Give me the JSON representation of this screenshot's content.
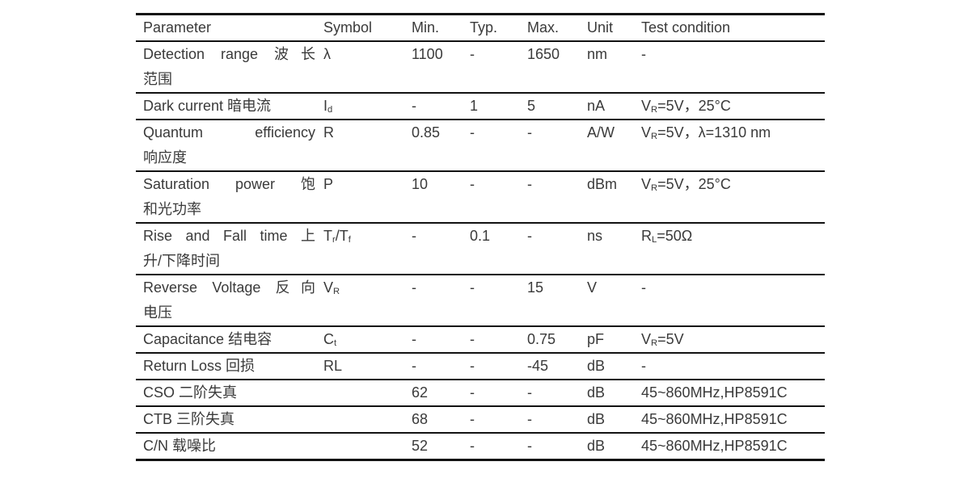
{
  "colors": {
    "text": "#3a3a3a",
    "rule": "#121212",
    "background": "#ffffff"
  },
  "table": {
    "columns": [
      "Parameter",
      "Symbol",
      "Min.",
      "Typ.",
      "Max.",
      "Unit",
      "Test condition"
    ],
    "rows": [
      {
        "cells": [
          "Detection range 波长\n范围",
          "λ",
          "1100",
          "-",
          "1650",
          "nm",
          "-"
        ]
      },
      {
        "cells": [
          "Dark current 暗电流",
          "I_{d}",
          "-",
          "1",
          "5",
          "nA",
          "V_{R}=5V，25°C"
        ]
      },
      {
        "cells": [
          "Quantum efficiency\n响应度",
          "R",
          "0.85",
          "-",
          "-",
          "A/W",
          "V_{R}=5V，λ=1310 nm"
        ]
      },
      {
        "cells": [
          "Saturation power 饱\n和光功率",
          "P",
          "10",
          "-",
          "-",
          "dBm",
          "V_{R}=5V，25°C"
        ]
      },
      {
        "cells": [
          "Rise and Fall time 上\n升/下降时间",
          "T_{r}/T_{f}",
          "-",
          "0.1",
          "-",
          "ns",
          "R_{L}=50Ω"
        ]
      },
      {
        "cells": [
          "Reverse Voltage 反向\n电压",
          "V_{R}",
          "-",
          "-",
          "15",
          "V",
          "-"
        ]
      },
      {
        "cells": [
          "Capacitance 结电容",
          "C_{t}",
          "-",
          "-",
          "0.75",
          "pF",
          "V_{R}=5V"
        ]
      },
      {
        "cells": [
          "Return Loss 回损",
          "RL",
          "-",
          "-",
          "-45",
          "dB",
          "-"
        ]
      },
      {
        "cells": [
          "CSO 二阶失真",
          "",
          "62",
          "-",
          "-",
          "dB",
          "45~860MHz,HP8591C"
        ]
      },
      {
        "cells": [
          "CTB 三阶失真",
          "",
          "68",
          "-",
          "-",
          "dB",
          "45~860MHz,HP8591C"
        ]
      },
      {
        "cells": [
          "C/N 载噪比",
          "",
          "52",
          "-",
          "-",
          "dB",
          "45~860MHz,HP8591C"
        ]
      }
    ]
  }
}
